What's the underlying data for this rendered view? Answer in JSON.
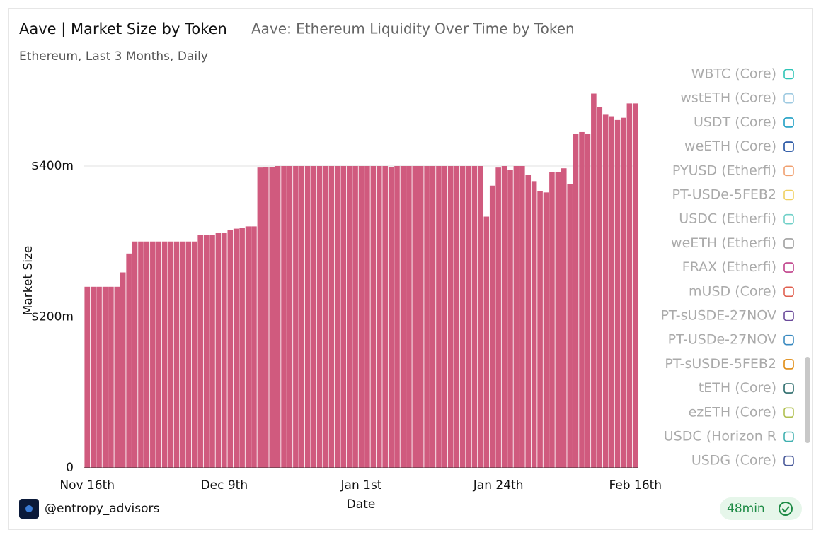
{
  "chart_data": {
    "type": "bar",
    "title": "Aave | Market Size by Token",
    "subtitle": "Aave: Ethereum Liquidity Over Time by Token",
    "description": "Ethereum, Last 3 Months, Daily",
    "y_label": "Market Size",
    "x_label": "Date",
    "author": "@entropy_advisors",
    "freshness": "48min",
    "color": "#d05a7e",
    "grid": true,
    "ylim": [
      0,
      525000000
    ],
    "yticks": [
      0,
      {
        "value": 200000000,
        "label": "$200m"
      },
      {
        "value": 400000000,
        "label": "$400m"
      }
    ],
    "categories": [
      "Nov 16th",
      null,
      null,
      null,
      null,
      null,
      null,
      null,
      null,
      null,
      null,
      null,
      null,
      null,
      null,
      null,
      null,
      null,
      null,
      null,
      null,
      null,
      null,
      "Dec 9th",
      null,
      null,
      null,
      null,
      null,
      null,
      null,
      null,
      null,
      null,
      null,
      null,
      null,
      null,
      null,
      null,
      null,
      null,
      null,
      null,
      null,
      null,
      "Jan 1st",
      null,
      null,
      null,
      null,
      null,
      null,
      null,
      null,
      null,
      null,
      null,
      null,
      null,
      null,
      null,
      null,
      null,
      null,
      null,
      null,
      null,
      null,
      "Jan 24th",
      null,
      null,
      null,
      null,
      null,
      null,
      null,
      null,
      null,
      null,
      null,
      null,
      null,
      null,
      null,
      null,
      null,
      null,
      null,
      null,
      null,
      null,
      "Feb 16th"
    ],
    "values": [
      240000000,
      240000000,
      240000000,
      240000000,
      240000000,
      240000000,
      259000000,
      284000000,
      300000000,
      300000000,
      300000000,
      300000000,
      300000000,
      300000000,
      300000000,
      300000000,
      300000000,
      300000000,
      300000000,
      309000000,
      309000000,
      309000000,
      311000000,
      311000000,
      315000000,
      317000000,
      318000000,
      320000000,
      320000000,
      398000000,
      399000000,
      399000000,
      400000000,
      400000000,
      400000000,
      400000000,
      400000000,
      400000000,
      400000000,
      400000000,
      400000000,
      400000000,
      400000000,
      400000000,
      400000000,
      400000000,
      400000000,
      400000000,
      400000000,
      400000000,
      400000000,
      399000000,
      400000000,
      400000000,
      400000000,
      400000000,
      400000000,
      400000000,
      400000000,
      400000000,
      400000000,
      400000000,
      400000000,
      400000000,
      400000000,
      400000000,
      400000000,
      333000000,
      374000000,
      398000000,
      400000000,
      395000000,
      400000000,
      400000000,
      388000000,
      380000000,
      367000000,
      365000000,
      392000000,
      392000000,
      397000000,
      376000000,
      443000000,
      445000000,
      443000000,
      496000000,
      478000000,
      468000000,
      466000000,
      461000000,
      464000000,
      483000000,
      483000000
    ],
    "legend": [
      {
        "name": "WBTC (Core)",
        "color": "#2ec4b6"
      },
      {
        "name": "wstETH (Core)",
        "color": "#9ecae1"
      },
      {
        "name": "USDT (Core)",
        "color": "#1f9fc4"
      },
      {
        "name": "weETH (Core)",
        "color": "#1f4fa0"
      },
      {
        "name": "PYUSD (Etherfi)",
        "color": "#f0a070"
      },
      {
        "name": "PT-USDe-5FEB2",
        "color": "#f0d060"
      },
      {
        "name": "USDC (Etherfi)",
        "color": "#70d0c8"
      },
      {
        "name": "weETH (Etherfi)",
        "color": "#a0a0a0"
      },
      {
        "name": "FRAX (Etherfi)",
        "color": "#c0408a"
      },
      {
        "name": "mUSD (Core)",
        "color": "#e06050"
      },
      {
        "name": "PT-sUSDE-27NOV",
        "color": "#6a4a9a"
      },
      {
        "name": "PT-USDe-27NOV",
        "color": "#3a8ac0"
      },
      {
        "name": "PT-sUSDE-5FEB2",
        "color": "#e08a10"
      },
      {
        "name": "tETH (Core)",
        "color": "#2a6a6a"
      },
      {
        "name": "ezETH (Core)",
        "color": "#b0c050"
      },
      {
        "name": "USDC (Horizon R",
        "color": "#40b0b0"
      },
      {
        "name": "USDG (Core)",
        "color": "#4a5a9a"
      }
    ]
  }
}
